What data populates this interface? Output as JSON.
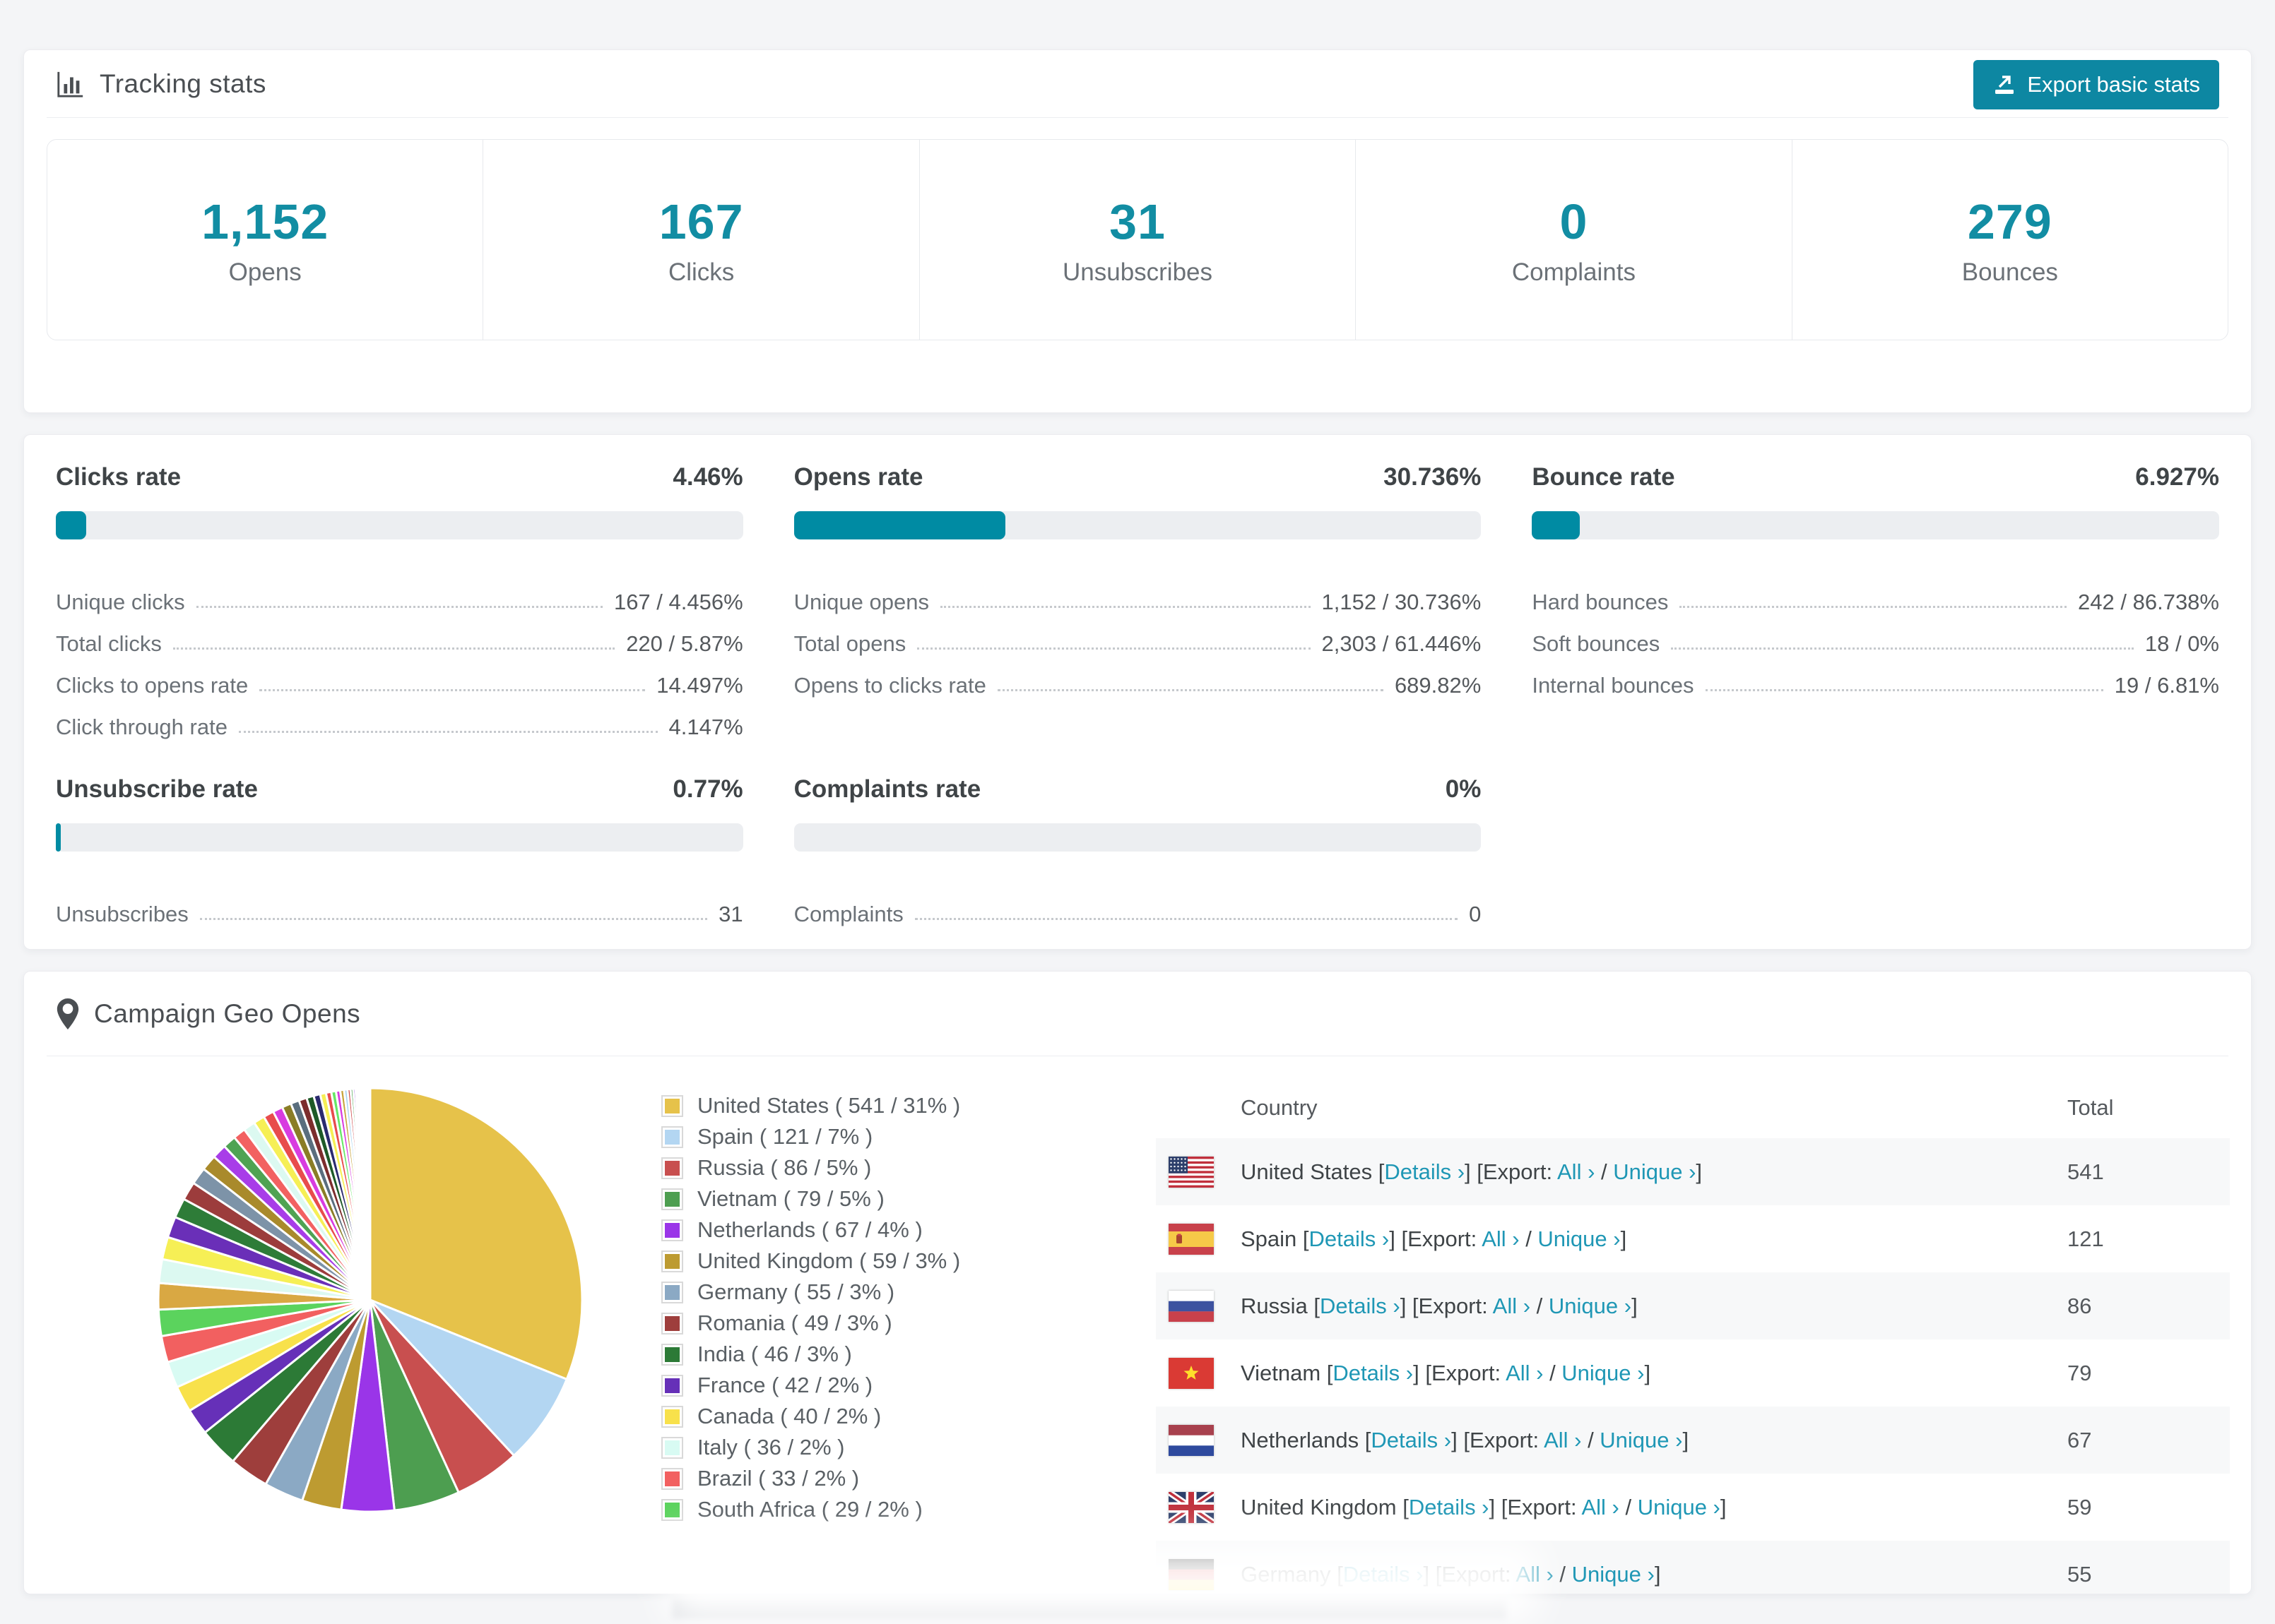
{
  "tracking": {
    "title": "Tracking stats",
    "export_label": "Export basic stats",
    "accent_color": "#128da3",
    "bar_color": "#008ba3",
    "link_color": "#1f97b5"
  },
  "summary": [
    {
      "value": "1,152",
      "label": "Opens"
    },
    {
      "value": "167",
      "label": "Clicks"
    },
    {
      "value": "31",
      "label": "Unsubscribes"
    },
    {
      "value": "0",
      "label": "Complaints"
    },
    {
      "value": "279",
      "label": "Bounces"
    }
  ],
  "rates": [
    {
      "title": "Clicks rate",
      "value": "4.46%",
      "percent": 4.46,
      "rows": [
        {
          "label": "Unique clicks",
          "value": "167 / 4.456%"
        },
        {
          "label": "Total clicks",
          "value": "220 / 5.87%"
        },
        {
          "label": "Clicks to opens rate",
          "value": "14.497%"
        },
        {
          "label": "Click through rate",
          "value": "4.147%"
        }
      ]
    },
    {
      "title": "Opens rate",
      "value": "30.736%",
      "percent": 30.736,
      "rows": [
        {
          "label": "Unique opens",
          "value": "1,152 / 30.736%"
        },
        {
          "label": "Total opens",
          "value": "2,303 / 61.446%"
        },
        {
          "label": "Opens to clicks rate",
          "value": "689.82%"
        }
      ]
    },
    {
      "title": "Bounce rate",
      "value": "6.927%",
      "percent": 6.927,
      "rows": [
        {
          "label": "Hard bounces",
          "value": "242 / 86.738%"
        },
        {
          "label": "Soft bounces",
          "value": "18 / 0%"
        },
        {
          "label": "Internal bounces",
          "value": "19 / 6.81%"
        }
      ]
    },
    {
      "title": "Unsubscribe rate",
      "value": "0.77%",
      "percent": 0.77,
      "rows": [
        {
          "label": "Unsubscribes",
          "value": "31"
        }
      ]
    },
    {
      "title": "Complaints rate",
      "value": "0%",
      "percent": 0,
      "rows": [
        {
          "label": "Complaints",
          "value": "0"
        }
      ]
    }
  ],
  "geo": {
    "title": "Campaign Geo Opens",
    "table": {
      "headers": [
        "Country",
        "Total"
      ],
      "link_parts": {
        "bracket_open": "[",
        "details": "Details ›",
        "bracket_mid": "] [Export: ",
        "all": "All ›",
        "separator": " / ",
        "unique": "Unique ›",
        "bracket_close": "]"
      },
      "rows": [
        {
          "country": "United States",
          "flag": "us",
          "total": "541"
        },
        {
          "country": "Spain",
          "flag": "es",
          "total": "121"
        },
        {
          "country": "Russia",
          "flag": "ru",
          "total": "86"
        },
        {
          "country": "Vietnam",
          "flag": "vn",
          "total": "79"
        },
        {
          "country": "Netherlands",
          "flag": "nl",
          "total": "67"
        },
        {
          "country": "United Kingdom",
          "flag": "gb",
          "total": "59"
        },
        {
          "country": "Germany",
          "flag": "de",
          "total": "55"
        }
      ]
    }
  },
  "chart_data": {
    "type": "pie",
    "title": "Campaign Geo Opens",
    "legend_position": "right",
    "start_angle": -90,
    "direction": "clockwise",
    "series": [
      {
        "label": "United States",
        "value": 541,
        "pct": 31,
        "color": "#e6c24a",
        "legend_label": "United States ( 541 / 31% )"
      },
      {
        "label": "Spain",
        "value": 121,
        "pct": 7,
        "color": "#b3d6f2",
        "legend_label": "Spain ( 121 / 7% )"
      },
      {
        "label": "Russia",
        "value": 86,
        "pct": 5,
        "color": "#c84f4f",
        "legend_label": "Russia ( 86 / 5% )"
      },
      {
        "label": "Vietnam",
        "value": 79,
        "pct": 5,
        "color": "#4d9e50",
        "legend_label": "Vietnam ( 79 / 5% )"
      },
      {
        "label": "Netherlands",
        "value": 67,
        "pct": 4,
        "color": "#9a35e8",
        "legend_label": "Netherlands ( 67 / 4% )"
      },
      {
        "label": "United Kingdom",
        "value": 59,
        "pct": 3,
        "color": "#bd9b31",
        "legend_label": "United Kingdom ( 59 / 3% )"
      },
      {
        "label": "Germany",
        "value": 55,
        "pct": 3,
        "color": "#8ba9c4",
        "legend_label": "Germany ( 55 / 3% )"
      },
      {
        "label": "Romania",
        "value": 49,
        "pct": 3,
        "color": "#9e3e3c",
        "legend_label": "Romania ( 49 / 3% )"
      },
      {
        "label": "India",
        "value": 46,
        "pct": 3,
        "color": "#2c7a36",
        "legend_label": "India ( 46 / 3% )"
      },
      {
        "label": "France",
        "value": 42,
        "pct": 2,
        "color": "#6630b8",
        "legend_label": "France ( 42 / 2% )"
      },
      {
        "label": "Canada",
        "value": 40,
        "pct": 2,
        "color": "#f8e14b",
        "legend_label": "Canada ( 40 / 2% )"
      },
      {
        "label": "Italy",
        "value": 36,
        "pct": 2,
        "color": "#d8fbf3",
        "legend_label": "Italy ( 36 / 2% )"
      },
      {
        "label": "Brazil",
        "value": 33,
        "pct": 2,
        "color": "#f26060",
        "legend_label": "Brazil ( 33 / 2% )"
      },
      {
        "label": "South Africa",
        "value": 29,
        "pct": 2,
        "color": "#5bd35d",
        "legend_label": "South Africa ( 29 / 2% )"
      }
    ],
    "others_note": "remaining small countries rendered as thin unlabeled slices",
    "others_values": [
      2.0,
      1.8,
      1.7,
      1.6,
      1.5,
      1.4,
      1.3,
      1.2,
      1.1,
      1.0,
      0.95,
      0.9,
      0.85,
      0.8,
      0.75,
      0.7,
      0.65,
      0.6,
      0.55,
      0.5,
      0.45,
      0.4,
      0.36,
      0.32,
      0.29,
      0.26,
      0.23,
      0.2,
      0.18,
      0.16,
      0.14,
      0.12,
      0.1,
      0.09,
      0.08,
      0.07,
      0.06,
      0.05,
      0.05,
      0.04,
      0.04,
      0.03,
      0.03,
      0.02,
      0.02
    ],
    "others_colors": [
      "#d9a843",
      "#dcf9f1",
      "#f6ef55",
      "#6a2fb8",
      "#2e7c38",
      "#9c3c3c",
      "#7d93a8",
      "#a98a2b",
      "#a83de8",
      "#4fa353",
      "#f26161",
      "#dcf9f1",
      "#f6ef55",
      "#e84c4c",
      "#d83ce0",
      "#8a7d26",
      "#5a6e7e",
      "#7c2d2d",
      "#1e5a28",
      "#2a2a6e",
      "#f6ef55",
      "#e84c4c",
      "#66e866",
      "#d83ce0",
      "#c8a43c",
      "#a8d4f0",
      "#cc4444",
      "#3a9a3e",
      "#8a3ce0",
      "#e0c050",
      "#4cc0e0",
      "#e86666",
      "#66cc66",
      "#cc66e0",
      "#aaaa33",
      "#6688aa",
      "#884444",
      "#336633",
      "#444488",
      "#cccc44",
      "#cc4466",
      "#66cc99",
      "#cc8844",
      "#8899cc",
      "#d06ad0"
    ]
  }
}
